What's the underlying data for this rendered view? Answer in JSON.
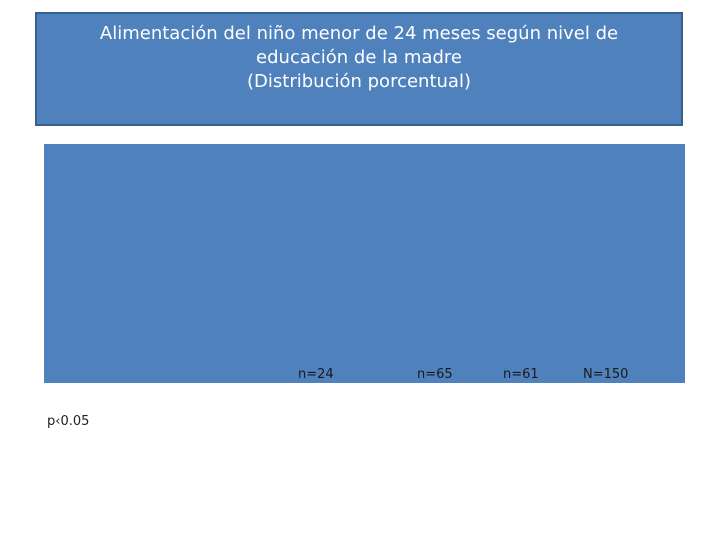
{
  "title": {
    "line1": "Alimentación del niño menor de 24 meses según nivel de",
    "line2": "educación de la madre",
    "line3": "(Distribución porcentual)"
  },
  "chart_data": {
    "type": "bar",
    "title": "Alimentación del niño menor de 24 meses según nivel de educación de la madre (Distribución porcentual)",
    "categories": [
      "n=24",
      "n=65",
      "n=61",
      "N=150"
    ],
    "series": [],
    "background_color": "#4f81bd"
  },
  "footnote": "p‹0.05",
  "colors": {
    "panel": "#4f81bd",
    "panel_border": "#3a5f8b",
    "title_text": "#ffffff"
  }
}
